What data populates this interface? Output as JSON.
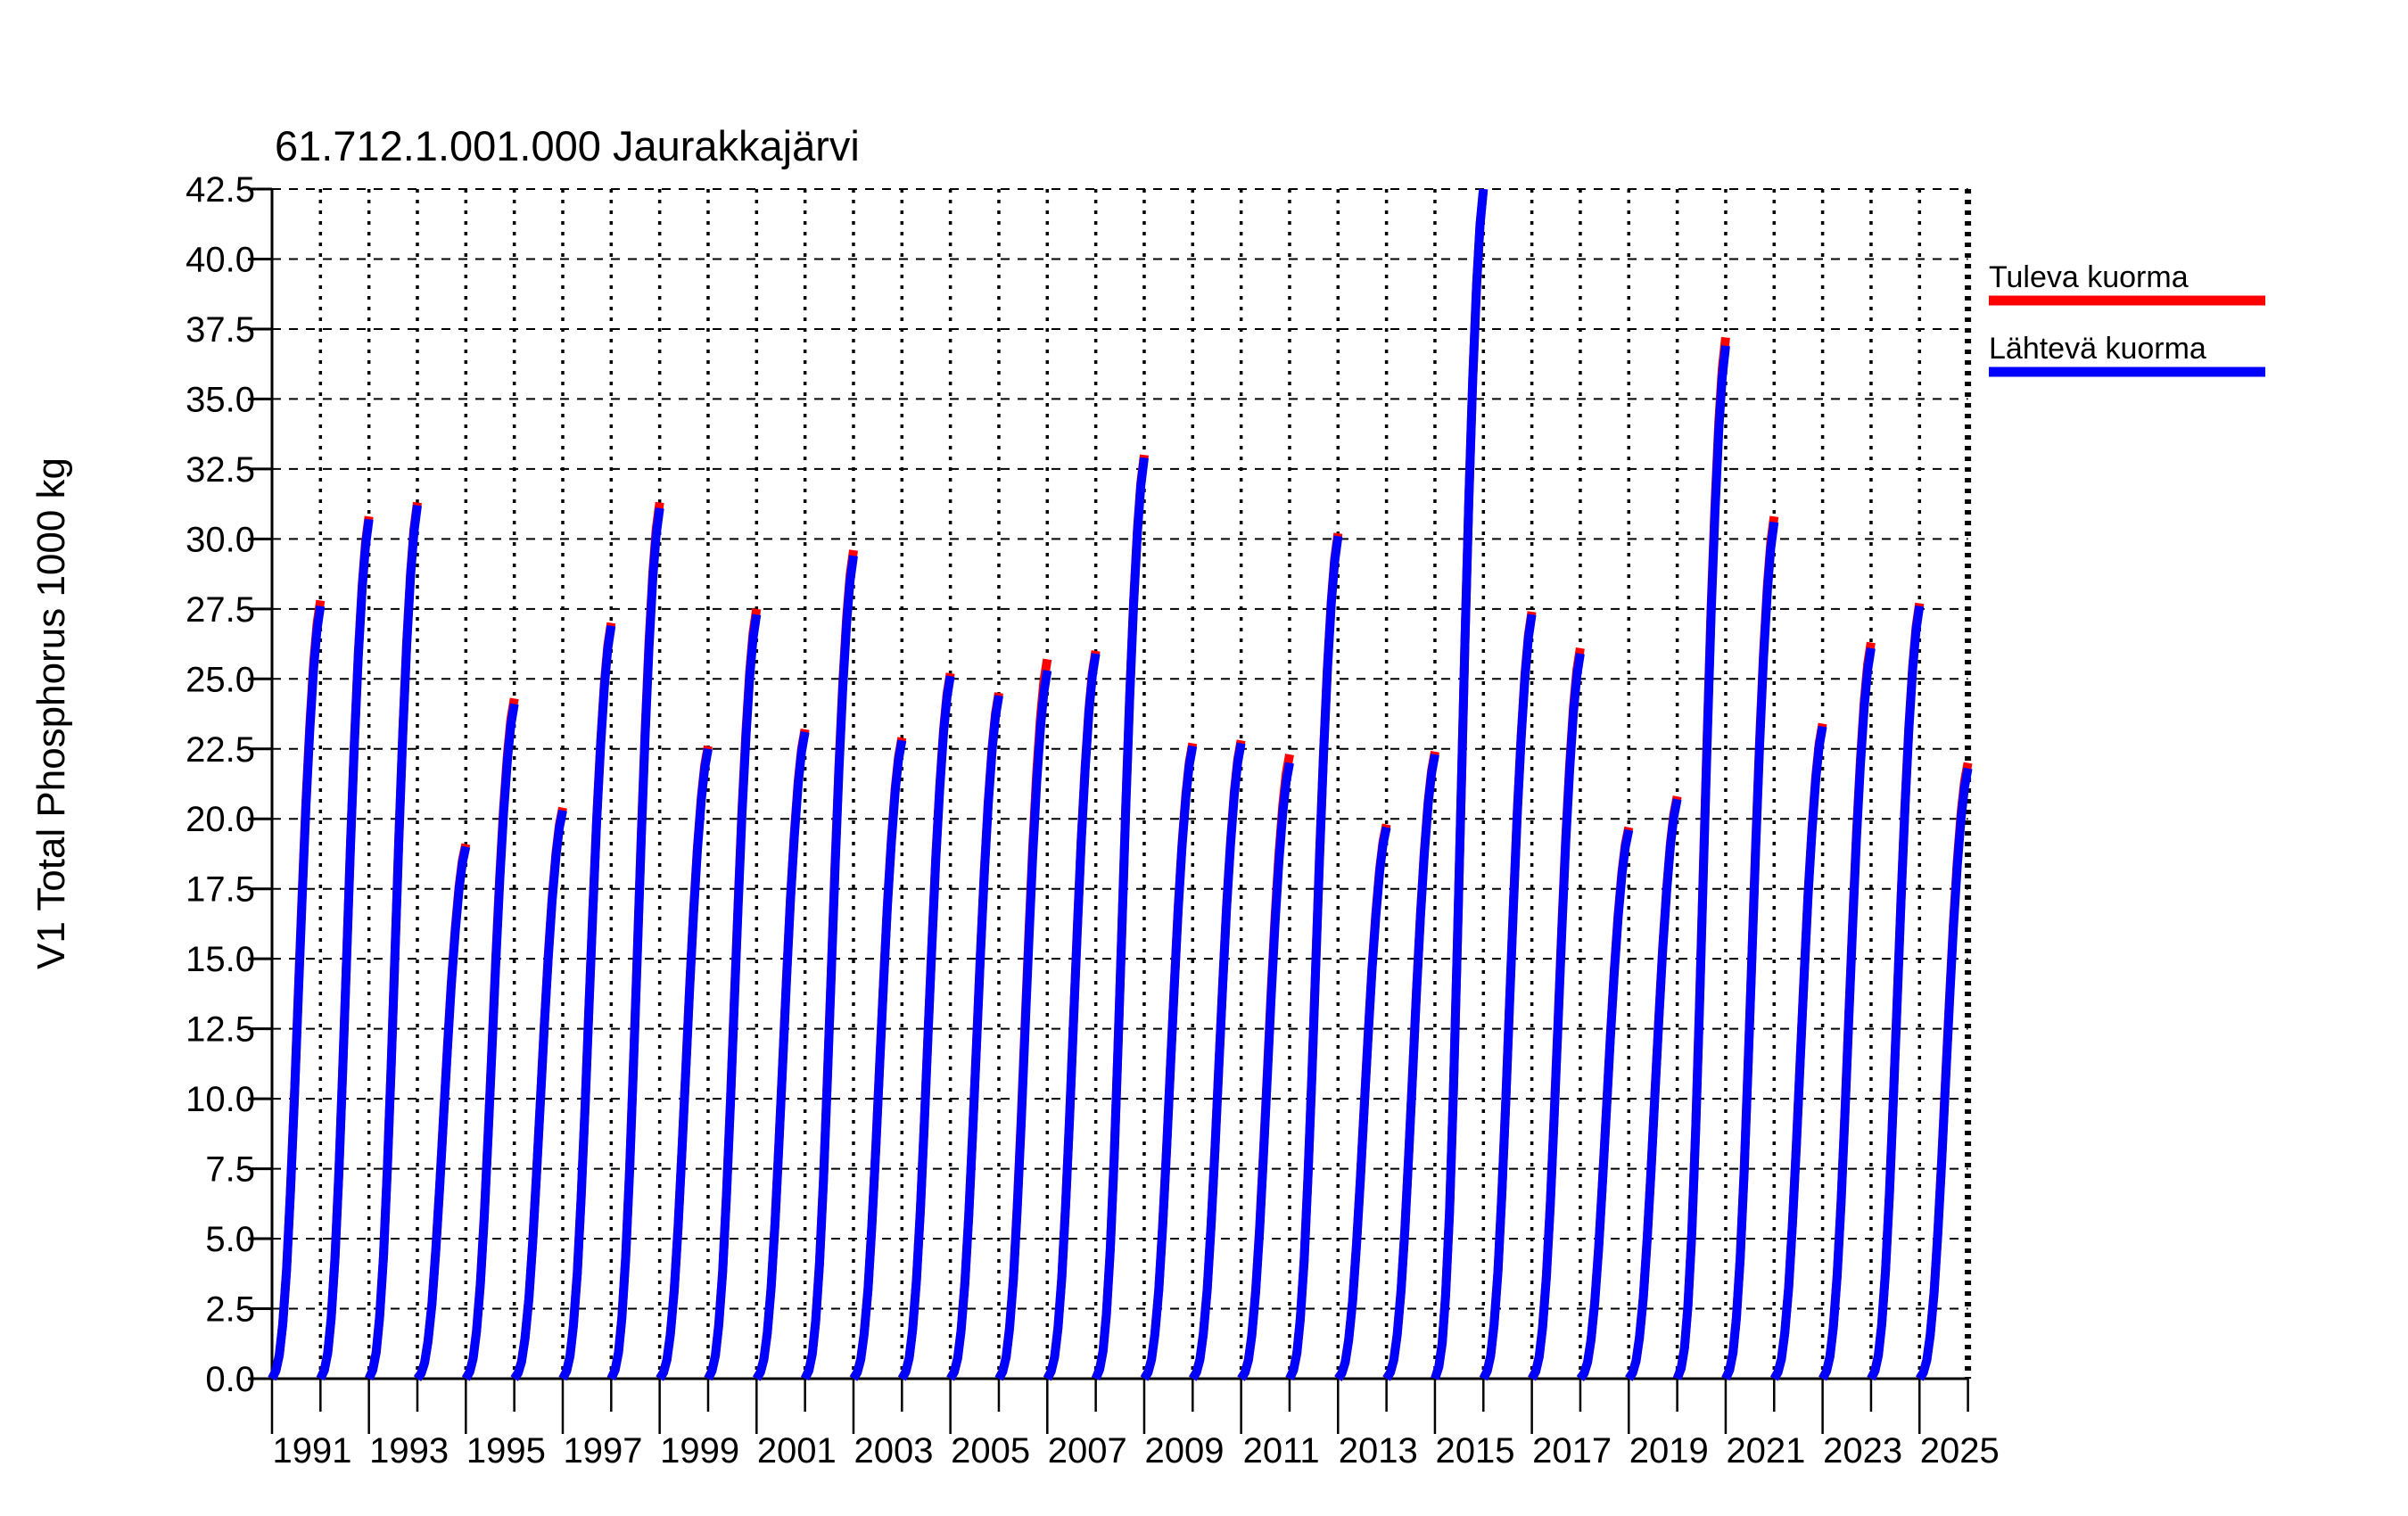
{
  "chart_data": {
    "type": "line",
    "title": "61.712.1.001.000 Jaurakkajärvi",
    "ylabel": "V1 Total Phosphorus 1000 kg",
    "ylim": [
      0,
      42.5
    ],
    "ytick_step": 2.5,
    "ytick_labels": [
      "0.0",
      "2.5",
      "5.0",
      "7.5",
      "10.0",
      "12.5",
      "15.0",
      "17.5",
      "20.0",
      "22.5",
      "25.0",
      "27.5",
      "30.0",
      "32.5",
      "35.0",
      "37.5",
      "40.0",
      "42.5"
    ],
    "xtick_labels": [
      "1991",
      "1993",
      "1995",
      "1997",
      "1999",
      "2001",
      "2003",
      "2005",
      "2007",
      "2009",
      "2011",
      "2013",
      "2015",
      "2017",
      "2019",
      "2021",
      "2023",
      "2025"
    ],
    "years": [
      1991,
      1992,
      1993,
      1994,
      1995,
      1996,
      1997,
      1998,
      1999,
      2000,
      2001,
      2002,
      2003,
      2004,
      2005,
      2006,
      2007,
      2008,
      2009,
      2010,
      2011,
      2012,
      2013,
      2014,
      2015,
      2016,
      2017,
      2018,
      2019,
      2020,
      2021,
      2022,
      2023,
      2024,
      2025
    ],
    "grid": true,
    "legend_position": "right",
    "series": [
      {
        "name": "Tuleva kuorma",
        "color": "#ff0000",
        "annual_peaks": [
          27.8,
          30.8,
          31.3,
          19.1,
          24.3,
          20.4,
          27.0,
          31.3,
          22.6,
          27.5,
          23.2,
          29.6,
          22.9,
          25.2,
          24.5,
          25.7,
          26.0,
          33.0,
          22.7,
          22.8,
          22.3,
          30.2,
          19.8,
          22.4,
          42.5,
          27.4,
          26.1,
          19.7,
          20.8,
          37.2,
          30.8,
          23.4,
          26.3,
          27.7,
          22.0
        ]
      },
      {
        "name": "Lähtevä kuorma",
        "color": "#0000ff",
        "annual_peaks": [
          27.6,
          30.7,
          31.2,
          19.0,
          24.1,
          20.3,
          26.9,
          31.1,
          22.5,
          27.3,
          23.1,
          29.4,
          22.8,
          25.1,
          24.4,
          25.3,
          25.9,
          32.9,
          22.6,
          22.7,
          22.0,
          30.1,
          19.7,
          22.3,
          42.5,
          27.3,
          25.9,
          19.6,
          20.7,
          36.9,
          30.6,
          23.3,
          26.1,
          27.6,
          21.8
        ]
      }
    ],
    "curve_profile": [
      [
        0,
        0
      ],
      [
        0.08,
        0.01
      ],
      [
        0.15,
        0.03
      ],
      [
        0.22,
        0.07
      ],
      [
        0.3,
        0.14
      ],
      [
        0.38,
        0.24
      ],
      [
        0.46,
        0.36
      ],
      [
        0.54,
        0.49
      ],
      [
        0.62,
        0.62
      ],
      [
        0.7,
        0.74
      ],
      [
        0.78,
        0.84
      ],
      [
        0.86,
        0.92
      ],
      [
        0.93,
        0.97
      ],
      [
        1,
        1
      ]
    ]
  }
}
